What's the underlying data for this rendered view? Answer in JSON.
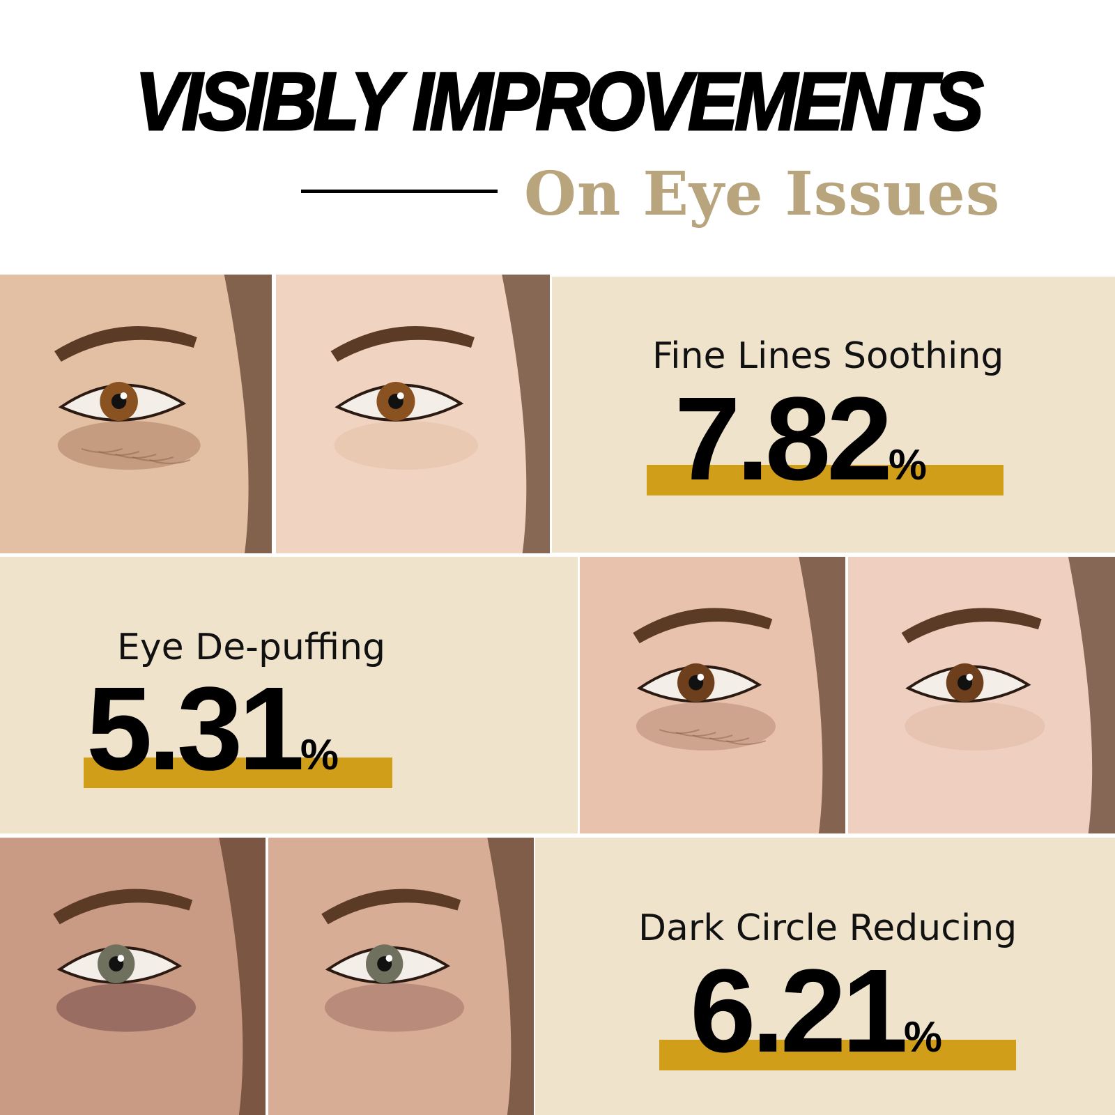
{
  "header": {
    "title": "VISIBLY IMPROVEMENTS",
    "subtitle": "On Eye Issues"
  },
  "colors": {
    "panel": "#efe3cc",
    "bar": "#d19e1a",
    "subtitle": "#b8a47d"
  },
  "stats": [
    {
      "label": "Fine Lines Soothing",
      "value": "7.82",
      "unit": "%"
    },
    {
      "label": "Eye De-puffing",
      "value": "5.31",
      "unit": "%"
    },
    {
      "label": "Dark Circle Reducing",
      "value": "6.21",
      "unit": "%"
    }
  ]
}
